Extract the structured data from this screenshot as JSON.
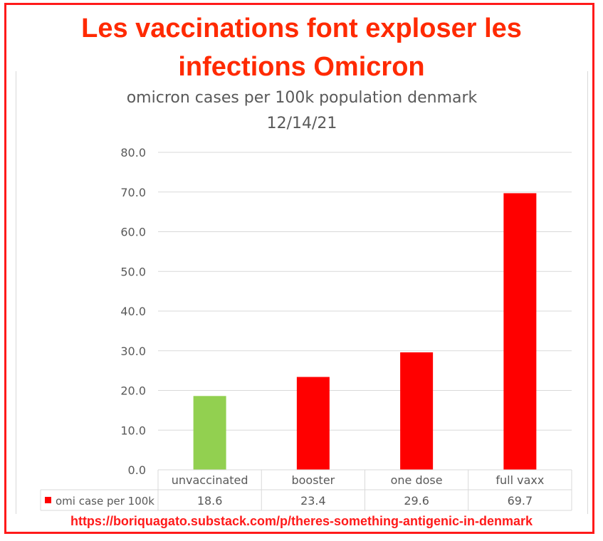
{
  "headline": {
    "line1": "Les vaccinations font exploser les",
    "line2": "infections Omicron"
  },
  "source_url": "https://boriquagato.substack.com/p/theres-something-antigenic-in-denmark",
  "colors": {
    "headline": "#ff2a00",
    "frame": "#ff1a1a",
    "bar_red": "#ff0000",
    "bar_green": "#92d050",
    "grid": "#d9d9d9",
    "text": "#595959"
  },
  "chart_data": {
    "type": "bar",
    "title": "omicron cases per 100k population denmark",
    "subtitle": "12/14/21",
    "categories": [
      "unvaccinated",
      "booster",
      "one dose",
      "full vaxx"
    ],
    "series": [
      {
        "name": "omi case per 100k",
        "values": [
          18.6,
          23.4,
          29.6,
          69.7
        ],
        "value_labels": [
          "18.6",
          "23.4",
          "29.6",
          "69.7"
        ]
      }
    ],
    "bar_colors": [
      "#92d050",
      "#ff0000",
      "#ff0000",
      "#ff0000"
    ],
    "legend_color": "#ff0000",
    "ylim": [
      0,
      80
    ],
    "ytick_values": [
      0,
      10,
      20,
      30,
      40,
      50,
      60,
      70,
      80
    ],
    "ytick_labels": [
      "0.0",
      "10.0",
      "20.0",
      "30.0",
      "40.0",
      "50.0",
      "60.0",
      "70.0",
      "80.0"
    ],
    "grid": true,
    "legend": "data-table",
    "xlabel": "",
    "ylabel": ""
  }
}
